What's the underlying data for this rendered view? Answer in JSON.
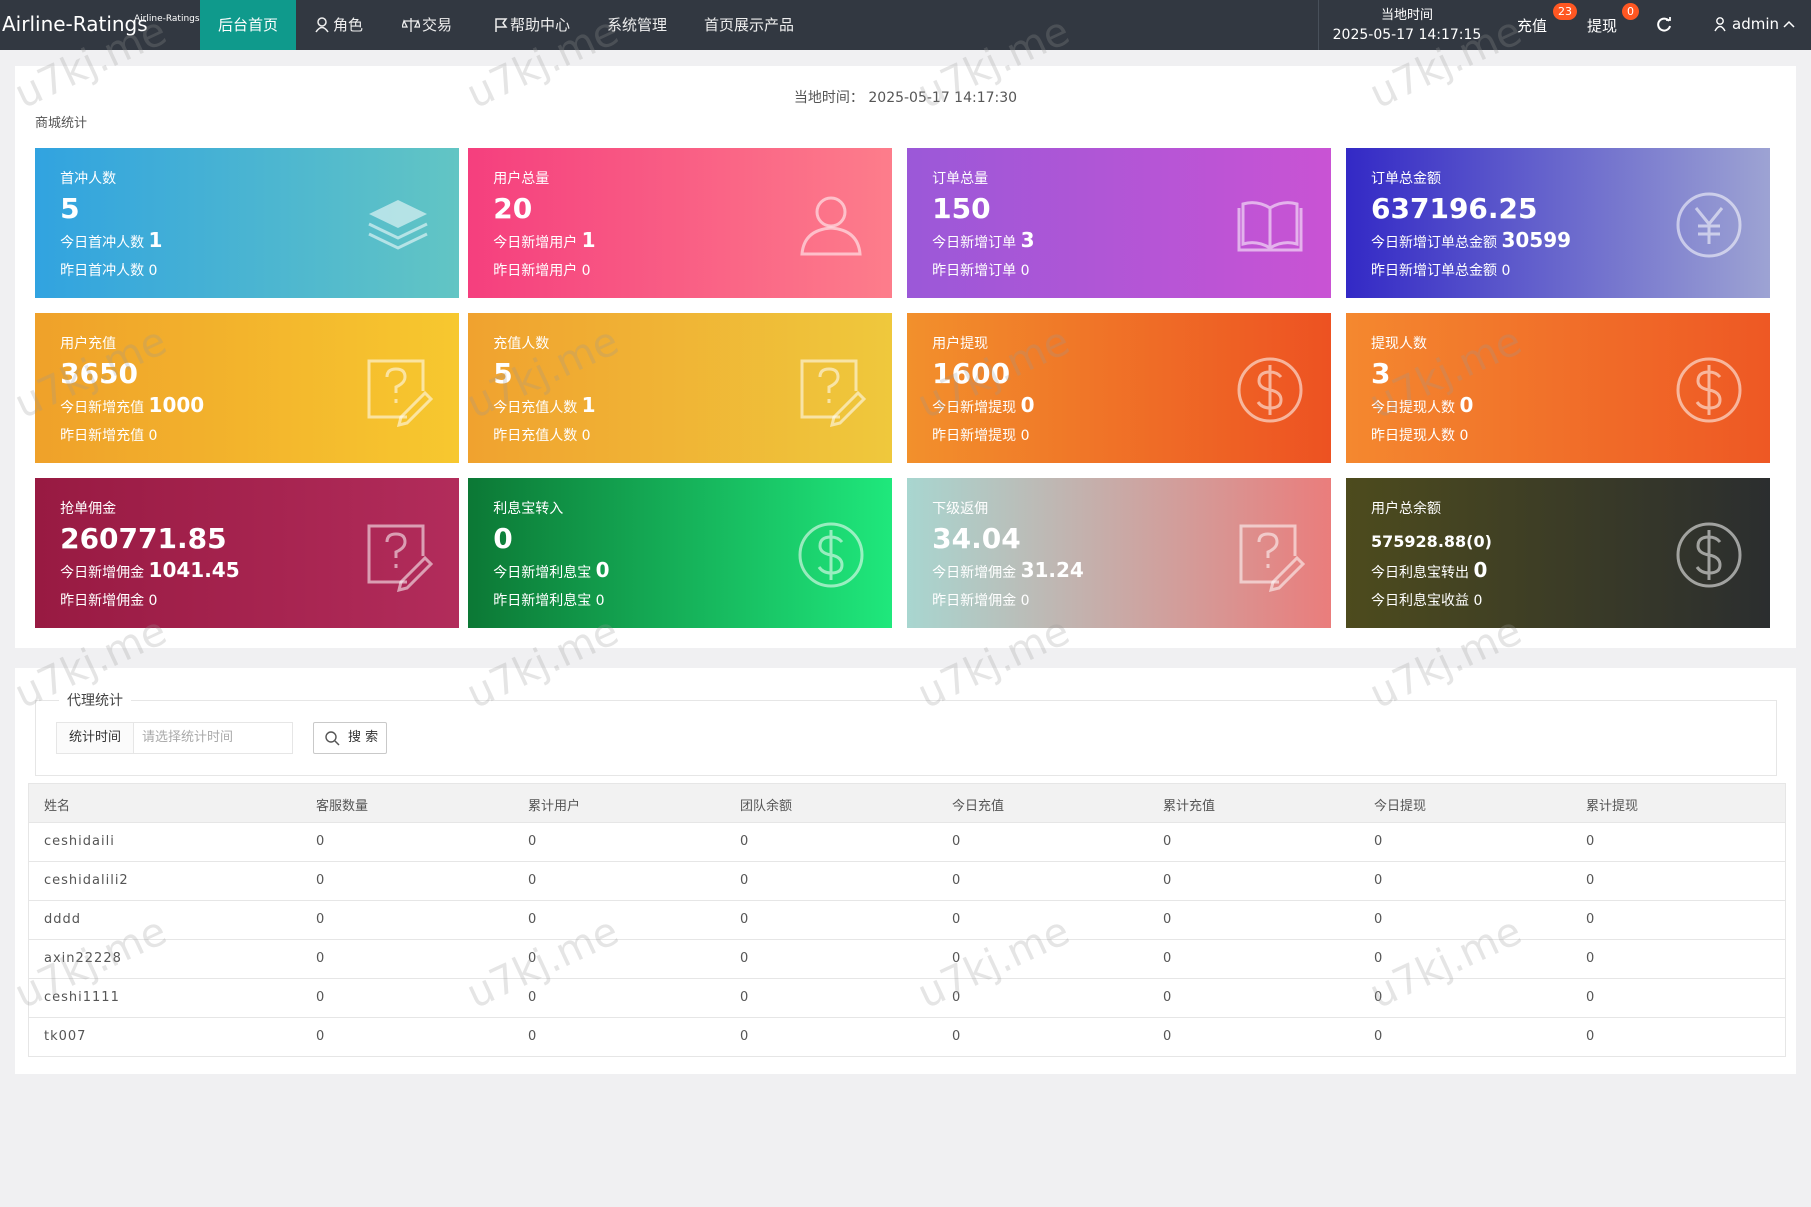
{
  "header": {
    "logo": "Airline-Ratings",
    "logo_small": "Airline-Ratings",
    "nav": [
      "后台首页",
      "角色",
      "交易",
      "帮助中心",
      "系统管理",
      "首页展示产品"
    ],
    "time_label": "当地时间",
    "time_value": "2025-05-17 14:17:15",
    "recharge": "充值",
    "recharge_badge": 23,
    "withdraw": "提现",
    "withdraw_badge": 0,
    "user": "admin"
  },
  "overview": {
    "time_label": "当地时间：",
    "time_value": "2025-05-17 14:17:30",
    "section_title": "商城统计",
    "cards": [
      {
        "title": "首冲人数",
        "value": 5,
        "line1_label": "今日首冲人数",
        "line1_value": 1,
        "line2_label": "昨日首冲人数",
        "line2_value": 0
      },
      {
        "title": "用户总量",
        "value": 20,
        "line1_label": "今日新增用户",
        "line1_value": 1,
        "line2_label": "昨日新增用户",
        "line2_value": 0
      },
      {
        "title": "订单总量",
        "value": 150,
        "line1_label": "今日新增订单",
        "line1_value": 3,
        "line2_label": "昨日新增订单",
        "line2_value": 0
      },
      {
        "title": "订单总金额",
        "value": 637196.25,
        "line1_label": "今日新增订单总金额",
        "line1_value": 30599,
        "line2_label": "昨日新增订单总金额",
        "line2_value": 0
      },
      {
        "title": "用户充值",
        "value": 3650,
        "line1_label": "今日新增充值",
        "line1_value": 1000,
        "line2_label": "昨日新增充值",
        "line2_value": 0
      },
      {
        "title": "充值人数",
        "value": 5,
        "line1_label": "今日充值人数",
        "line1_value": 1,
        "line2_label": "昨日充值人数",
        "line2_value": 0
      },
      {
        "title": "用户提现",
        "value": 1600,
        "line1_label": "今日新增提现",
        "line1_value": 0,
        "line2_label": "昨日新增提现",
        "line2_value": 0
      },
      {
        "title": "提现人数",
        "value": 3,
        "line1_label": "今日提现人数",
        "line1_value": 0,
        "line2_label": "昨日提现人数",
        "line2_value": 0
      },
      {
        "title": "抢单佣金",
        "value": 260771.85,
        "line1_label": "今日新增佣金",
        "line1_value": 1041.45,
        "line2_label": "昨日新增佣金",
        "line2_value": 0
      },
      {
        "title": "利息宝转入",
        "value": 0,
        "line1_label": "今日新增利息宝",
        "line1_value": 0,
        "line2_label": "昨日新增利息宝",
        "line2_value": 0
      },
      {
        "title": "下级返佣",
        "value": 34.04,
        "line1_label": "今日新增佣金",
        "line1_value": 31.24,
        "line2_label": "昨日新增佣金",
        "line2_value": 0
      },
      {
        "title": "用户总余额",
        "value": "575928.88(0)",
        "line1_label": "今日利息宝转出",
        "line1_value": 0,
        "line2_label": "今日利息宝收益",
        "line2_value": 0
      }
    ]
  },
  "agent": {
    "section_title": "代理统计",
    "filter_label": "统计时间",
    "filter_placeholder": "请选择统计时间",
    "search_button": "搜 索",
    "table": {
      "columns": [
        "姓名",
        "客服数量",
        "累计用户",
        "团队余额",
        "今日充值",
        "累计充值",
        "今日提现",
        "累计提现"
      ],
      "rows": [
        [
          "ceshidaili",
          0,
          0,
          0,
          0,
          0,
          0,
          0
        ],
        [
          "ceshidalili2",
          0,
          0,
          0,
          0,
          0,
          0,
          0
        ],
        [
          "dddd",
          0,
          0,
          0,
          0,
          0,
          0,
          0
        ],
        [
          "axin22228",
          0,
          0,
          0,
          0,
          0,
          0,
          0
        ],
        [
          "ceshi1111",
          0,
          0,
          0,
          0,
          0,
          0,
          0
        ],
        [
          "tk007",
          0,
          0,
          0,
          0,
          0,
          0,
          0
        ]
      ]
    }
  },
  "watermark": "u7kj.me"
}
